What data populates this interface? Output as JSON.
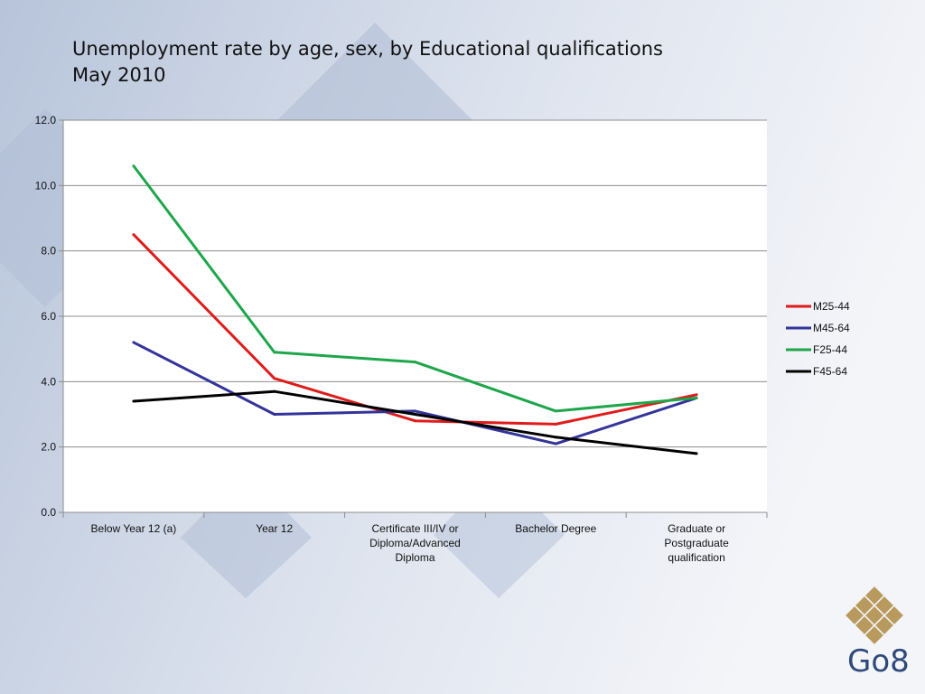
{
  "slide": {
    "title_line1": "Unemployment rate by age, sex, by Educational qualifications",
    "title_line2": "May 2010",
    "logo_text": "Go8"
  },
  "chart_data": {
    "type": "line",
    "categories": [
      "Below Year 12 (a)",
      "Year 12",
      "Certificate III/IV or Diploma/Advanced Diploma",
      "Bachelor Degree",
      "Graduate or Postgraduate qualification"
    ],
    "category_lines": [
      [
        "Below Year 12 (a)"
      ],
      [
        "Year 12"
      ],
      [
        "Certificate III/IV or",
        "Diploma/Advanced",
        "Diploma"
      ],
      [
        "Bachelor Degree"
      ],
      [
        "Graduate or",
        "Postgraduate",
        "qualification"
      ]
    ],
    "series": [
      {
        "name": "M25-44",
        "color": "#e01b1b",
        "values": [
          8.5,
          4.1,
          2.8,
          2.7,
          3.6
        ]
      },
      {
        "name": "M45-64",
        "color": "#33339a",
        "values": [
          5.2,
          3.0,
          3.1,
          2.1,
          3.5
        ]
      },
      {
        "name": "F25-44",
        "color": "#1ea64a",
        "values": [
          10.6,
          4.9,
          4.6,
          3.1,
          3.5
        ]
      },
      {
        "name": "F45-64",
        "color": "#000000",
        "values": [
          3.4,
          3.7,
          3.0,
          2.3,
          1.8
        ]
      }
    ],
    "y_ticks": [
      "0.0",
      "2.0",
      "4.0",
      "6.0",
      "8.0",
      "10.0",
      "12.0"
    ],
    "ylim": [
      0,
      12
    ],
    "grid": true,
    "legend_position": "right"
  }
}
